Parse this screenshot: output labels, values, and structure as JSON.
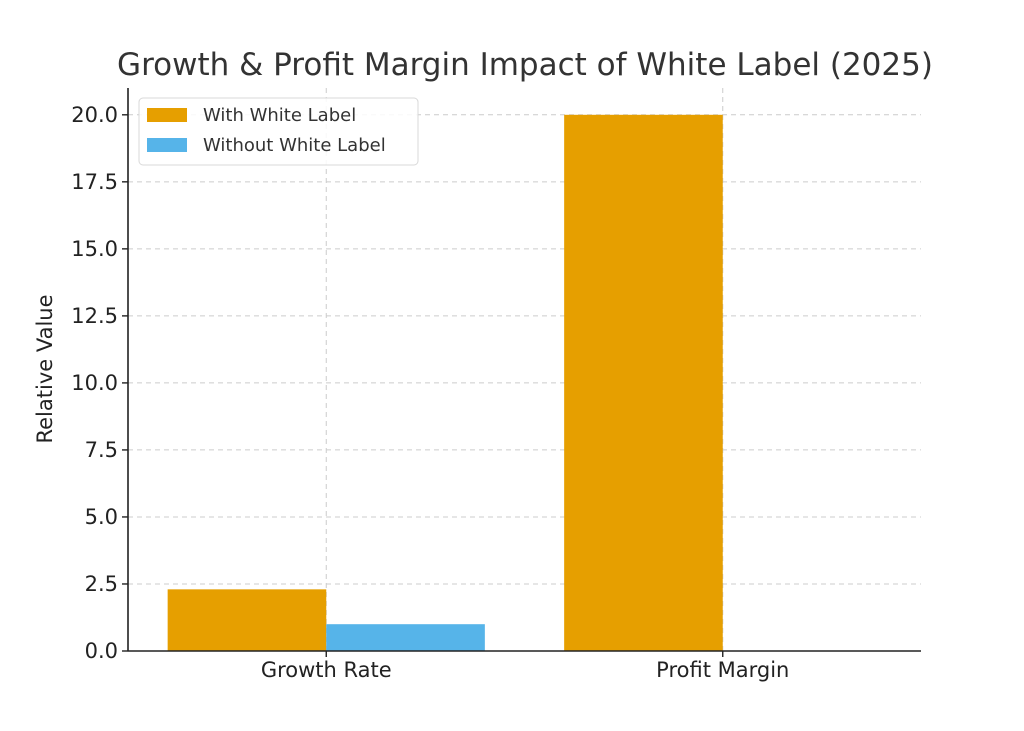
{
  "chart_data": {
    "type": "bar",
    "title": "Growth & Profit Margin Impact of White Label (2025)",
    "xlabel": "",
    "ylabel": "Relative Value",
    "categories": [
      "Growth Rate",
      "Profit Margin"
    ],
    "series": [
      {
        "name": "With White Label",
        "values": [
          2.3,
          20
        ],
        "color": "#E69F00"
      },
      {
        "name": "Without White Label",
        "values": [
          1,
          0
        ],
        "color": "#56B4E9"
      }
    ],
    "ylim": [
      0,
      21
    ],
    "yticks": [
      "0.0",
      "2.5",
      "5.0",
      "7.5",
      "10.0",
      "12.5",
      "15.0",
      "17.5",
      "20.0"
    ],
    "grid": true,
    "legend_position": "top-left"
  }
}
